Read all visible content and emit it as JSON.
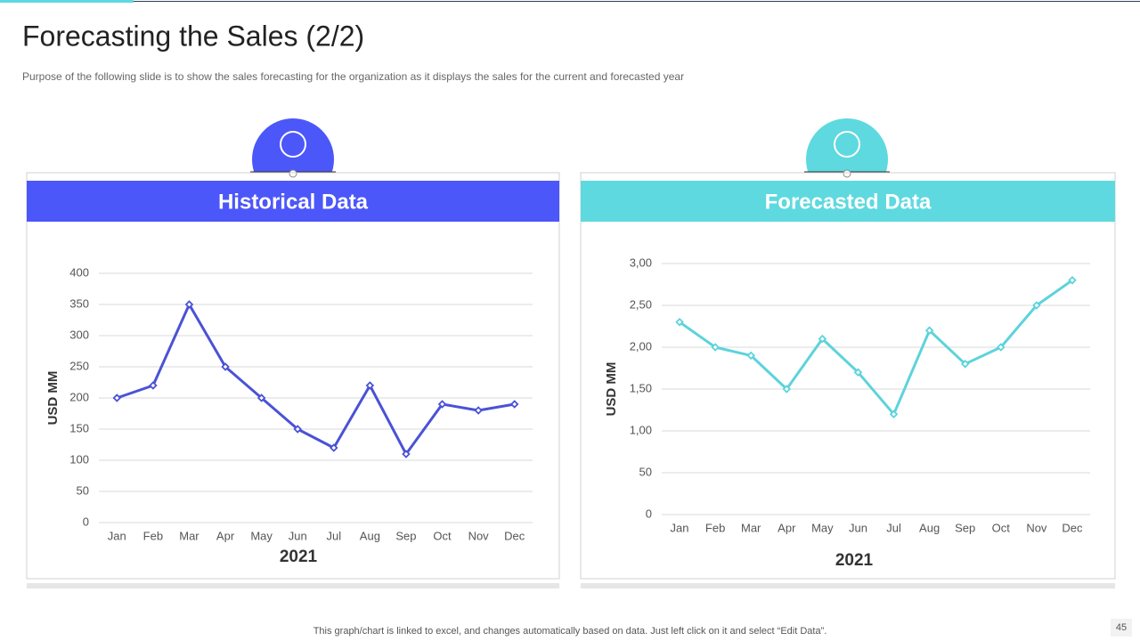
{
  "title": "Forecasting the Sales (2/2)",
  "subtitle": "Purpose of the following slide is to show the sales forecasting for the organization as it displays the sales for the current and forecasted year",
  "footer": "This graph/chart is linked to excel, and changes automatically based on data. Just left click on it and select “Edit Data”.",
  "page_number": "45",
  "chart_data": [
    {
      "type": "line",
      "title": "Historical Data",
      "xlabel": "2021",
      "ylabel": "USD MM",
      "categories": [
        "Jan",
        "Feb",
        "Mar",
        "Apr",
        "May",
        "Jun",
        "Jul",
        "Aug",
        "Sep",
        "Oct",
        "Nov",
        "Dec"
      ],
      "series": [
        {
          "color": "#4a52d6",
          "values": [
            200,
            220,
            350,
            250,
            200,
            150,
            120,
            220,
            110,
            190,
            180,
            190
          ]
        }
      ],
      "ylim": [
        0,
        400
      ],
      "yticks": [
        0,
        50,
        100,
        150,
        200,
        250,
        300,
        350,
        400
      ],
      "grid": true,
      "header_color": "#4c57f9"
    },
    {
      "type": "line",
      "title": "Forecasted Data",
      "xlabel": "2021",
      "ylabel": "USD MM",
      "categories": [
        "Jan",
        "Feb",
        "Mar",
        "Apr",
        "May",
        "Jun",
        "Jul",
        "Aug",
        "Sep",
        "Oct",
        "Nov",
        "Dec"
      ],
      "series": [
        {
          "color": "#5dd3db",
          "values": [
            230,
            200,
            190,
            150,
            210,
            170,
            120,
            220,
            180,
            200,
            250,
            280
          ]
        }
      ],
      "ylim": [
        0,
        300
      ],
      "yticks": [
        0,
        50,
        {
          "value": 100,
          "label": "1,00"
        },
        {
          "value": 150,
          "label": "1,50"
        },
        {
          "value": 200,
          "label": "2,00"
        },
        {
          "value": 250,
          "label": "2,50"
        },
        {
          "value": 300,
          "label": "3,00"
        }
      ],
      "grid": true,
      "header_color": "#5ed9df"
    }
  ]
}
